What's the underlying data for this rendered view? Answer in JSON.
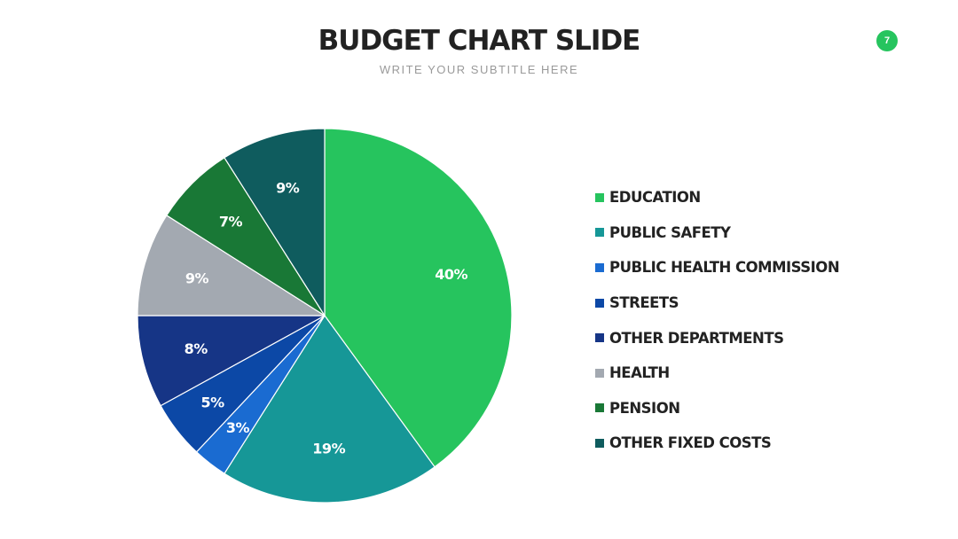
{
  "page_number": "7",
  "chart_data": {
    "type": "pie",
    "title": "BUDGET CHART SLIDE",
    "subtitle": "WRITE YOUR SUBTITLE HERE",
    "start_angle": "12 o'clock",
    "direction": "clockwise",
    "legend_position": "right",
    "slices": [
      {
        "name": "EDUCATION",
        "value": 40,
        "label": "40%",
        "color": "#26c45e"
      },
      {
        "name": "PUBLIC SAFETY",
        "value": 19,
        "label": "19%",
        "color": "#169797"
      },
      {
        "name": "PUBLIC HEALTH COMMISSION",
        "value": 3,
        "label": "3%",
        "color": "#1a6bd1"
      },
      {
        "name": "STREETS",
        "value": 5,
        "label": "5%",
        "color": "#0c48a6"
      },
      {
        "name": "OTHER DEPARTMENTS",
        "value": 8,
        "label": "8%",
        "color": "#163586"
      },
      {
        "name": "HEALTH",
        "value": 9,
        "label": "9%",
        "color": "#a3a9b1"
      },
      {
        "name": "PENSION",
        "value": 7,
        "label": "7%",
        "color": "#197836"
      },
      {
        "name": "OTHER FIXED COSTS",
        "value": 9,
        "label": "9%",
        "color": "#0f5c5e"
      }
    ]
  }
}
